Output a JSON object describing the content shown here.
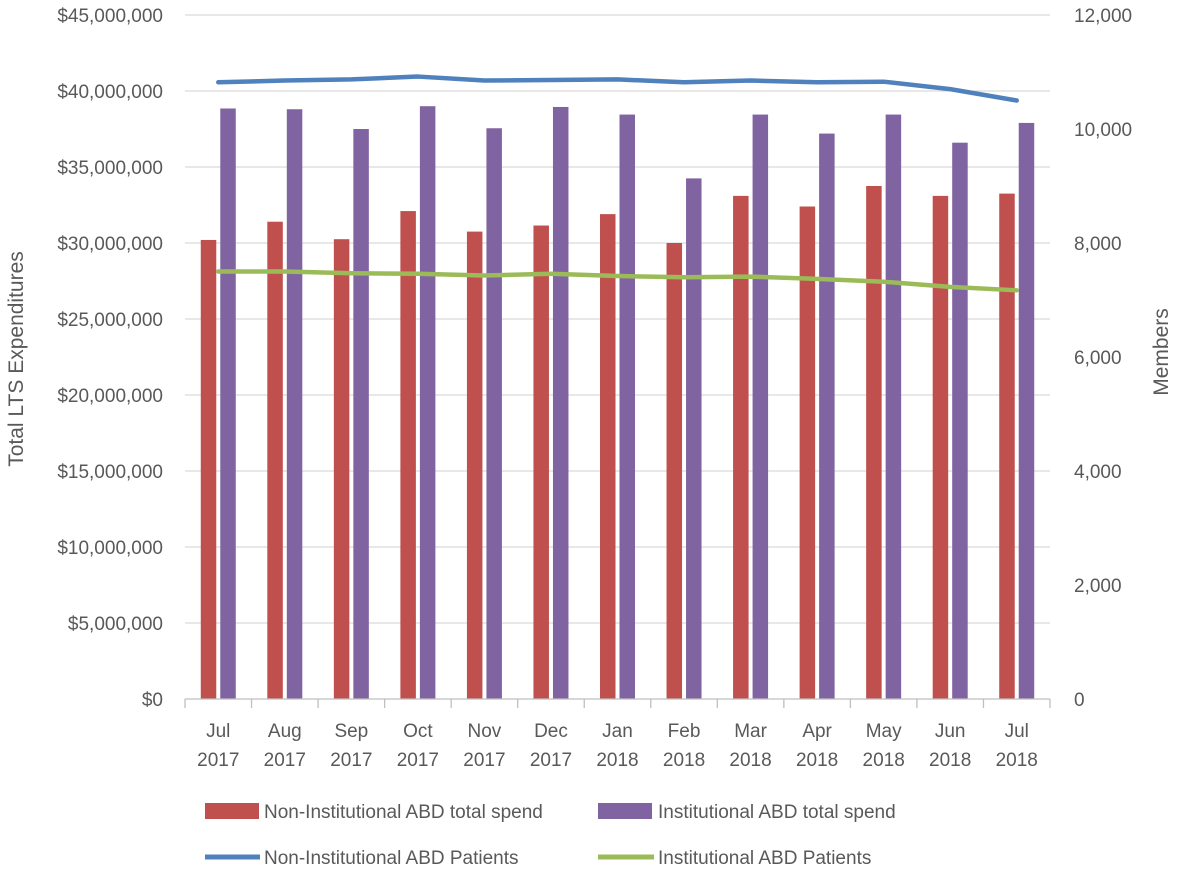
{
  "chart_data": {
    "type": "bar",
    "categories": [
      [
        "Jul",
        "2017"
      ],
      [
        "Aug",
        "2017"
      ],
      [
        "Sep",
        "2017"
      ],
      [
        "Oct",
        "2017"
      ],
      [
        "Nov",
        "2017"
      ],
      [
        "Dec",
        "2017"
      ],
      [
        "Jan",
        "2018"
      ],
      [
        "Feb",
        "2018"
      ],
      [
        "Mar",
        "2018"
      ],
      [
        "Apr",
        "2018"
      ],
      [
        "May",
        "2018"
      ],
      [
        "Jun",
        "2018"
      ],
      [
        "Jul",
        "2018"
      ]
    ],
    "ylabel": "Total LTS Expenditures",
    "y2label": "Members",
    "ylim": [
      0,
      45000000
    ],
    "y2lim": [
      0,
      12000
    ],
    "yticks": [
      0,
      5000000,
      10000000,
      15000000,
      20000000,
      25000000,
      30000000,
      35000000,
      40000000,
      45000000
    ],
    "ytick_labels": [
      "$0",
      "$5,000,000",
      "$10,000,000",
      "$15,000,000",
      "$20,000,000",
      "$25,000,000",
      "$30,000,000",
      "$35,000,000",
      "$40,000,000",
      "$45,000,000"
    ],
    "y2ticks": [
      0,
      2000,
      4000,
      6000,
      8000,
      10000,
      12000
    ],
    "y2tick_labels": [
      "0",
      "2,000",
      "4,000",
      "6,000",
      "8,000",
      "10,000",
      "12,000"
    ],
    "grid": true,
    "legend_position": "bottom",
    "bar_series": [
      {
        "name": "Non-Institutional ABD total spend",
        "color": "#C0504D",
        "values": [
          30200000,
          31400000,
          30250000,
          32100000,
          30750000,
          31150000,
          31900000,
          30000000,
          33100000,
          32400000,
          33750000,
          33100000,
          33250000
        ]
      },
      {
        "name": "Institutional ABD total spend",
        "color": "#8064A2",
        "values": [
          38850000,
          38800000,
          37500000,
          39000000,
          37550000,
          38950000,
          38450000,
          34250000,
          38450000,
          37200000,
          38450000,
          36600000,
          37900000
        ]
      }
    ],
    "line_series": [
      {
        "name": "Non-Institutional ABD Patients",
        "color": "#4F81BD",
        "axis": "secondary",
        "values": [
          10820,
          10850,
          10870,
          10920,
          10850,
          10860,
          10870,
          10820,
          10850,
          10820,
          10830,
          10700,
          10500
        ]
      },
      {
        "name": "Institutional ABD Patients",
        "color": "#9BBB59",
        "axis": "secondary",
        "values": [
          7500,
          7500,
          7470,
          7460,
          7430,
          7460,
          7420,
          7400,
          7410,
          7370,
          7320,
          7230,
          7170
        ]
      }
    ]
  }
}
